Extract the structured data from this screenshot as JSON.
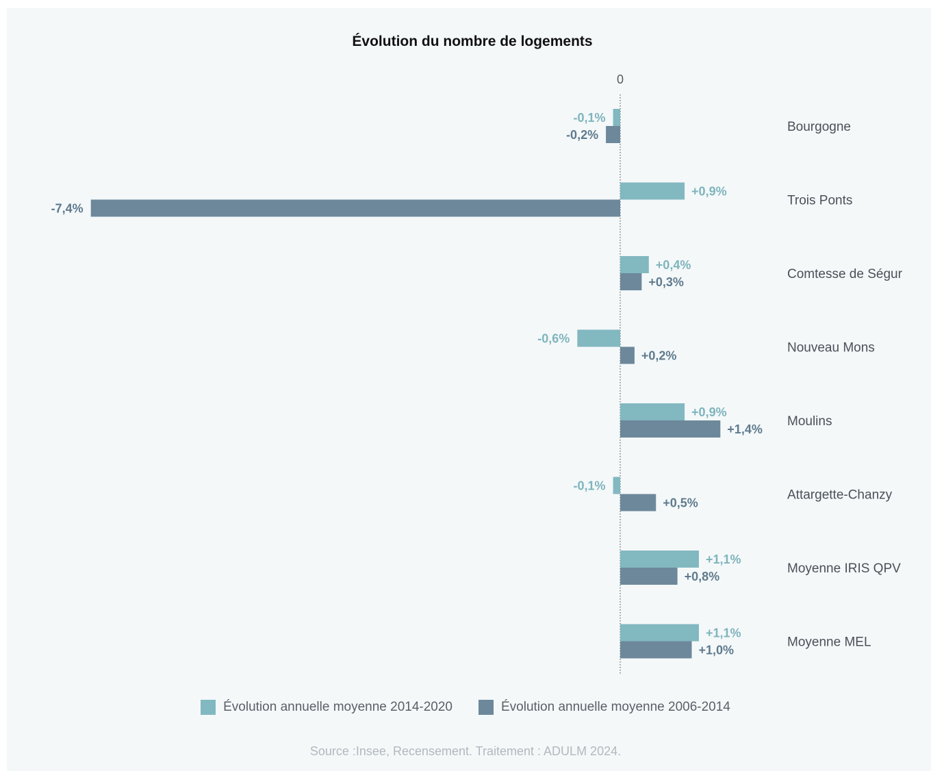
{
  "chart_data": {
    "type": "bar",
    "orientation": "horizontal",
    "title": "Évolution du nombre de logements",
    "zero_tick_label": "0",
    "categories": [
      "Bourgogne",
      "Trois Ponts",
      "Comtesse de Ségur",
      "Nouveau Mons",
      "Moulins",
      "Attargette-Chanzy",
      "Moyenne IRIS QPV",
      "Moyenne MEL"
    ],
    "series": [
      {
        "name": "Évolution annuelle moyenne 2014-2020",
        "color": "#82b8c0",
        "values": [
          -0.1,
          0.9,
          0.4,
          -0.6,
          0.9,
          -0.1,
          1.1,
          1.1
        ],
        "labels": [
          "-0,1%",
          "+0,9%",
          "+0,4%",
          "-0,6%",
          "+0,9%",
          "-0,1%",
          "+1,1%",
          "+1,1%"
        ]
      },
      {
        "name": "Évolution annuelle moyenne 2006-2014",
        "color": "#6d889b",
        "values": [
          -0.2,
          -7.4,
          0.3,
          0.2,
          1.4,
          0.5,
          0.8,
          1.0
        ],
        "labels": [
          "-0,2%",
          "-7,4%",
          "+0,3%",
          "+0,2%",
          "+1,4%",
          "+0,5%",
          "+0,8%",
          "+1,0%"
        ]
      }
    ],
    "xlim": [
      -7.4,
      1.4
    ],
    "grid": false,
    "legend_position": "bottom",
    "source": "Source :Insee, Recensement. Traitement : ADULM 2024."
  }
}
